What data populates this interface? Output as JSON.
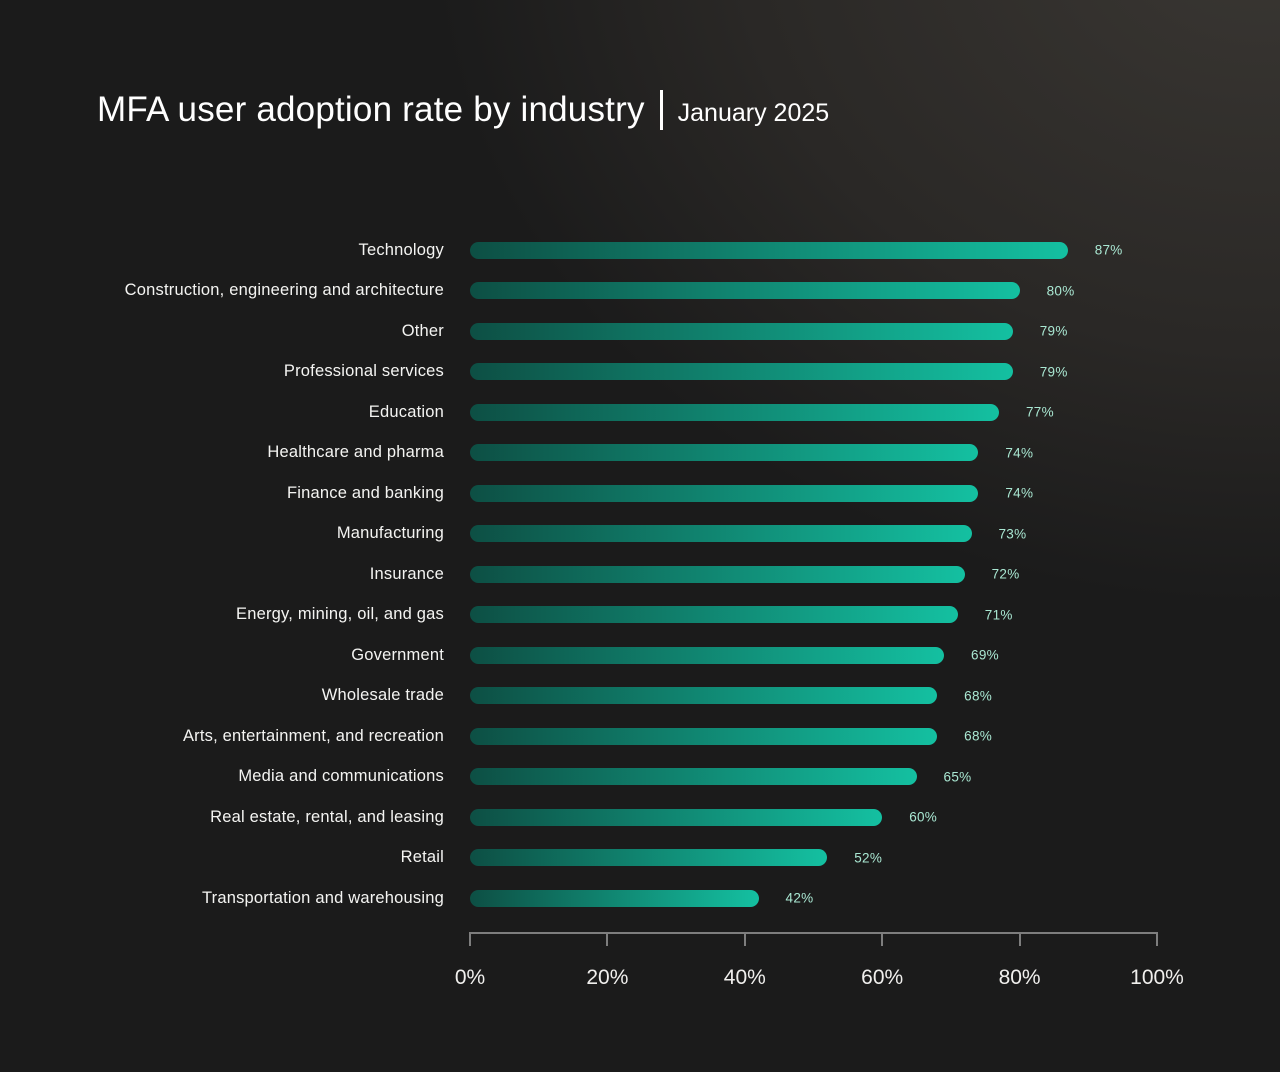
{
  "header": {
    "title": "MFA user adoption rate by industry",
    "subtitle": "January 2025"
  },
  "chart_data": {
    "type": "bar",
    "orientation": "horizontal",
    "title": "MFA user adoption rate by industry",
    "subtitle": "January 2025",
    "categories": [
      "Technology",
      "Construction, engineering and architecture",
      "Other",
      "Professional services",
      "Education",
      "Healthcare and pharma",
      "Finance and banking",
      "Manufacturing",
      "Insurance",
      "Energy, mining, oil, and gas",
      "Government",
      "Wholesale trade",
      "Arts, entertainment, and recreation",
      "Media and communications",
      "Real estate, rental, and leasing",
      "Retail",
      "Transportation and warehousing"
    ],
    "values": [
      87,
      80,
      79,
      79,
      77,
      74,
      74,
      73,
      72,
      71,
      69,
      68,
      68,
      65,
      60,
      52,
      42
    ],
    "value_suffix": "%",
    "xlabel": "",
    "ylabel": "",
    "xlim": [
      0,
      100
    ],
    "x_ticks": [
      "0%",
      "20%",
      "40%",
      "60%",
      "80%",
      "100%"
    ],
    "grid": false,
    "legend_position": "none",
    "colors": {
      "background_dark": "#1b1b1b",
      "background_light": "#3a3733",
      "bar_gradient_start": "#0d4f44",
      "bar_gradient_end": "#14c0a1",
      "value_label": "#a9e7d2",
      "category_label": "#f4f4f2",
      "axis": "#7e7e7e",
      "axis_label": "#f0efed",
      "title": "#ffffff"
    }
  }
}
